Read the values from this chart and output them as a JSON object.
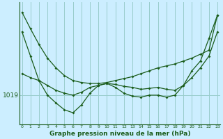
{
  "bg_color": "#cceeff",
  "plot_bg_color": "#cceeff",
  "line_color": "#1a5c1a",
  "grid_color": "#99cccc",
  "xlabel": "Graphe pression niveau de la mer (hPa)",
  "ytick_label": "1019",
  "ytick_value": 1019,
  "ylim": [
    1016.0,
    1028.5
  ],
  "xlim": [
    -0.3,
    23.3
  ],
  "xticks": [
    0,
    1,
    2,
    3,
    4,
    5,
    6,
    7,
    8,
    9,
    10,
    11,
    12,
    13,
    14,
    15,
    16,
    17,
    18,
    19,
    20,
    21,
    22,
    23
  ],
  "series1": [
    1027.5,
    1025.8,
    1024.2,
    1022.8,
    1021.8,
    1021.0,
    1020.5,
    1020.3,
    1020.2,
    1020.2,
    1020.3,
    1020.5,
    1020.7,
    1020.9,
    1021.2,
    1021.5,
    1021.8,
    1022.0,
    1022.2,
    1022.5,
    1022.8,
    1023.2,
    1023.6,
    1027.2
  ],
  "series2": [
    1025.5,
    1023.0,
    1020.5,
    1019.0,
    1018.2,
    1017.5,
    1017.2,
    1018.0,
    1019.2,
    1020.0,
    1020.2,
    1019.8,
    1019.2,
    1018.9,
    1018.8,
    1019.0,
    1019.0,
    1018.8,
    1019.0,
    1020.0,
    1021.5,
    1022.5,
    1024.8,
    1027.2
  ],
  "series3": [
    1021.2,
    1020.8,
    1020.5,
    1020.0,
    1019.5,
    1019.2,
    1019.0,
    1019.3,
    1019.8,
    1020.0,
    1020.2,
    1020.1,
    1019.9,
    1019.8,
    1019.6,
    1019.7,
    1019.8,
    1019.6,
    1019.5,
    1020.0,
    1020.8,
    1021.8,
    1023.0,
    1025.5
  ]
}
